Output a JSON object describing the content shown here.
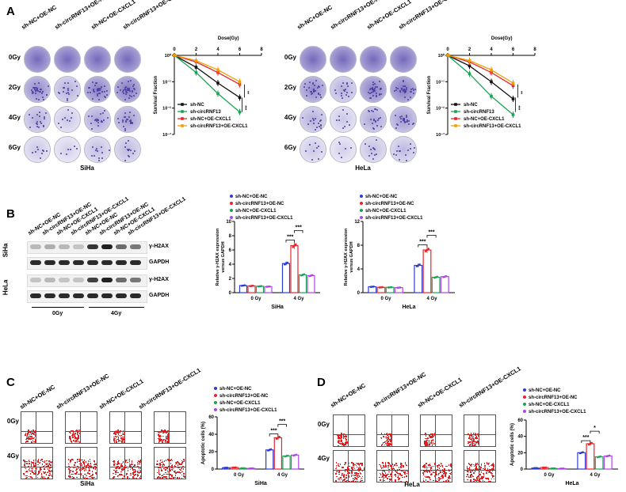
{
  "figure": {
    "panels": [
      "A",
      "B",
      "C",
      "D"
    ],
    "groups": [
      "sh-NC+OE-NC",
      "sh-circRNF13+OE-NC",
      "sh-NC+OE-CXCL1",
      "sh-circRNF13+OE-CXCL1"
    ],
    "doses": [
      "0Gy",
      "2Gy",
      "4Gy",
      "6Gy"
    ],
    "cell_lines": [
      "SiHa",
      "HeLa"
    ],
    "blot_labels": [
      "γ-H2AX",
      "GAPDH",
      "γ-H2AX",
      "GAPDH"
    ],
    "blot_rows": [
      "SiHa",
      "HeLa"
    ],
    "blot_doses": [
      "0Gy",
      "4Gy"
    ],
    "flow_rows": [
      "0Gy",
      "4Gy"
    ],
    "colors": {
      "black": "#111111",
      "green": "#1aa352",
      "red": "#e8252b",
      "orange": "#f0a000",
      "blue": "#2b3bd6",
      "purple": "#b243e8",
      "crystal": "#5b4fb0"
    }
  },
  "chart_data": [
    {
      "id": "survival-siha",
      "type": "line",
      "title": "Dose(Gy)",
      "xlabel": "Dose(Gy)",
      "ylabel": "Survival Fraction",
      "xlim": [
        0,
        8
      ],
      "xticks": [
        0,
        2,
        4,
        6,
        8
      ],
      "ylim_log10": [
        -3,
        0
      ],
      "yticks": [
        "10⁰",
        "10⁻¹",
        "10⁻²",
        "10⁻³"
      ],
      "x": [
        0,
        2,
        4,
        6
      ],
      "series": [
        {
          "name": "sh-NC",
          "color": "#111111",
          "log10_values": [
            0,
            -0.45,
            -1.05,
            -1.6
          ]
        },
        {
          "name": "sh-circRNF13",
          "color": "#1aa352",
          "log10_values": [
            0,
            -0.65,
            -1.45,
            -2.15
          ]
        },
        {
          "name": "sh-NC+OE-CXCL1",
          "color": "#e8252b",
          "log10_values": [
            0,
            -0.25,
            -0.65,
            -1.1
          ]
        },
        {
          "name": "sh-circRNF13+OE-CXCL1",
          "color": "#f0a000",
          "log10_values": [
            0,
            -0.2,
            -0.55,
            -1.0
          ]
        }
      ],
      "annotations": [
        "**",
        "***"
      ]
    },
    {
      "id": "survival-hela",
      "type": "line",
      "title": "Dose(Gy)",
      "xlabel": "Dose(Gy)",
      "ylabel": "Survival Fraction",
      "xlim": [
        0,
        8
      ],
      "xticks": [
        0,
        2,
        4,
        6,
        8
      ],
      "ylim_log10": [
        -3,
        0
      ],
      "yticks": [
        "10⁰",
        "10⁻¹",
        "10⁻²",
        "10⁻³"
      ],
      "x": [
        0,
        2,
        4,
        6
      ],
      "series": [
        {
          "name": "sh-NC",
          "color": "#111111",
          "log10_values": [
            0,
            -0.4,
            -1.0,
            -1.65
          ]
        },
        {
          "name": "sh-circRNF13",
          "color": "#1aa352",
          "log10_values": [
            0,
            -0.7,
            -1.55,
            -2.25
          ]
        },
        {
          "name": "sh-NC+OE-CXCL1",
          "color": "#e8252b",
          "log10_values": [
            0,
            -0.25,
            -0.65,
            -1.15
          ]
        },
        {
          "name": "sh-circRNF13+OE-CXCL1",
          "color": "#f0a000",
          "log10_values": [
            0,
            -0.2,
            -0.55,
            -1.05
          ]
        }
      ],
      "annotations": [
        "**",
        "***"
      ]
    },
    {
      "id": "h2ax-siha",
      "type": "bar",
      "title": "SiHa",
      "categories": [
        "0 Gy",
        "4 Gy"
      ],
      "ylabel": "Relative γ-H2AX expression versus GAPDH",
      "ylim": [
        0,
        10
      ],
      "yticks": [
        0,
        2,
        4,
        6,
        8,
        10
      ],
      "series": [
        {
          "name": "sh-NC+OE-NC",
          "color": "#2b3bd6",
          "values": [
            1.0,
            4.1
          ]
        },
        {
          "name": "sh-circRNF13+OE-NC",
          "color": "#e8252b",
          "values": [
            0.95,
            6.6
          ]
        },
        {
          "name": "sh-NC+OE-CXCL1",
          "color": "#1aa352",
          "values": [
            0.9,
            2.5
          ]
        },
        {
          "name": "sh-circRNF13+OE-CXCL1",
          "color": "#b243e8",
          "values": [
            0.85,
            2.4
          ]
        }
      ],
      "annotations": [
        "***",
        "***"
      ]
    },
    {
      "id": "h2ax-hela",
      "type": "bar",
      "title": "HeLa",
      "categories": [
        "0 Gy",
        "4 Gy"
      ],
      "ylabel": "Relative γ-H2AX expression versus GAPDH",
      "ylim": [
        0,
        12
      ],
      "yticks": [
        0,
        4,
        8,
        12
      ],
      "series": [
        {
          "name": "sh-NC+OE-NC",
          "color": "#2b3bd6",
          "values": [
            1.0,
            4.6
          ]
        },
        {
          "name": "sh-circRNF13+OE-NC",
          "color": "#e8252b",
          "values": [
            0.9,
            7.2
          ]
        },
        {
          "name": "sh-NC+OE-CXCL1",
          "color": "#1aa352",
          "values": [
            0.9,
            2.6
          ]
        },
        {
          "name": "sh-circRNF13+OE-CXCL1",
          "color": "#b243e8",
          "values": [
            0.85,
            2.7
          ]
        }
      ],
      "annotations": [
        "***",
        "***"
      ]
    },
    {
      "id": "apoptosis-siha",
      "type": "bar",
      "title": "SiHa",
      "categories": [
        "0 Gy",
        "4 Gy"
      ],
      "ylabel": "Apoptotic cells (%)",
      "ylim": [
        0,
        60
      ],
      "yticks": [
        0,
        20,
        40,
        60
      ],
      "series": [
        {
          "name": "sh-NC+OE-NC",
          "color": "#2b3bd6",
          "values": [
            1.5,
            22
          ]
        },
        {
          "name": "sh-circRNF13+OE-NC",
          "color": "#e8252b",
          "values": [
            1.8,
            36
          ]
        },
        {
          "name": "sh-NC+OE-CXCL1",
          "color": "#1aa352",
          "values": [
            1.0,
            15
          ]
        },
        {
          "name": "sh-circRNF13+OE-CXCL1",
          "color": "#b243e8",
          "values": [
            0.8,
            16
          ]
        }
      ],
      "annotations": [
        "***",
        "***"
      ]
    },
    {
      "id": "apoptosis-hela",
      "type": "bar",
      "title": "HeLa",
      "categories": [
        "0 Gy",
        "4 Gy"
      ],
      "ylabel": "Apoptotic cells (%)",
      "ylim": [
        0,
        60
      ],
      "yticks": [
        0,
        20,
        40,
        60
      ],
      "series": [
        {
          "name": "sh-NC+OE-NC",
          "color": "#2b3bd6",
          "values": [
            1.2,
            20
          ]
        },
        {
          "name": "sh-circRNF13+OE-NC",
          "color": "#e8252b",
          "values": [
            1.8,
            31
          ]
        },
        {
          "name": "sh-NC+OE-CXCL1",
          "color": "#1aa352",
          "values": [
            0.8,
            15
          ]
        },
        {
          "name": "sh-circRNF13+OE-CXCL1",
          "color": "#b243e8",
          "values": [
            0.6,
            16
          ]
        }
      ],
      "annotations": [
        "***",
        "*"
      ]
    }
  ]
}
